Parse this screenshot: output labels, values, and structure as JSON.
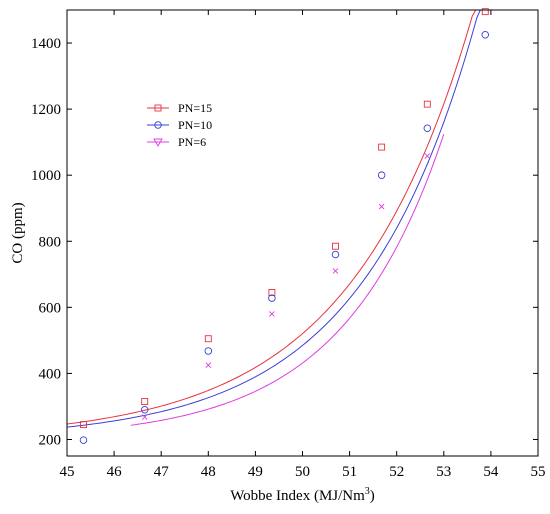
{
  "chart_data": {
    "type": "scatter",
    "xlabel": "Wobbe Index (MJ/Nm",
    "xlabel_sup": "3",
    "xlabel_end": ")",
    "ylabel": "CO (ppm)",
    "xlim": [
      45,
      55
    ],
    "ylim": [
      150,
      1500
    ],
    "xticks": [
      45,
      46,
      47,
      48,
      49,
      50,
      51,
      52,
      53,
      54,
      55
    ],
    "yticks": [
      200,
      400,
      600,
      800,
      1000,
      1200,
      1400
    ],
    "legend_position": "upper-left",
    "series": [
      {
        "name": "PN=15",
        "color": "#e8323c",
        "marker": "square",
        "x": [
          45.35,
          46.65,
          48.0,
          49.35,
          50.7,
          51.68,
          52.65,
          53.88
        ],
        "y": [
          245,
          315,
          505,
          645,
          785,
          1085,
          1215,
          1495
        ],
        "fit": {
          "a": 46.84,
          "b": 0.3846,
          "x0": 45,
          "x1": 53.9
        }
      },
      {
        "name": "PN=10",
        "color": "#3a3fd6",
        "marker": "circle",
        "x": [
          45.35,
          46.65,
          48.0,
          49.35,
          50.7,
          51.68,
          52.65,
          53.88
        ],
        "y": [
          198,
          290,
          468,
          628,
          760,
          1000,
          1142,
          1425
        ],
        "fit": {
          "a": 37.47,
          "b": 0.4055,
          "x0": 45,
          "x1": 54.0
        }
      },
      {
        "name": "PN=6",
        "color": "#e03ce0",
        "marker": "x",
        "x": [
          46.65,
          48.0,
          49.35,
          50.7,
          51.68,
          52.65
        ],
        "y": [
          268,
          425,
          580,
          710,
          905,
          1058
        ],
        "fit": {
          "a": 23.0,
          "b": 0.4617,
          "x0": 46.35,
          "x1": 53.0
        }
      }
    ]
  }
}
